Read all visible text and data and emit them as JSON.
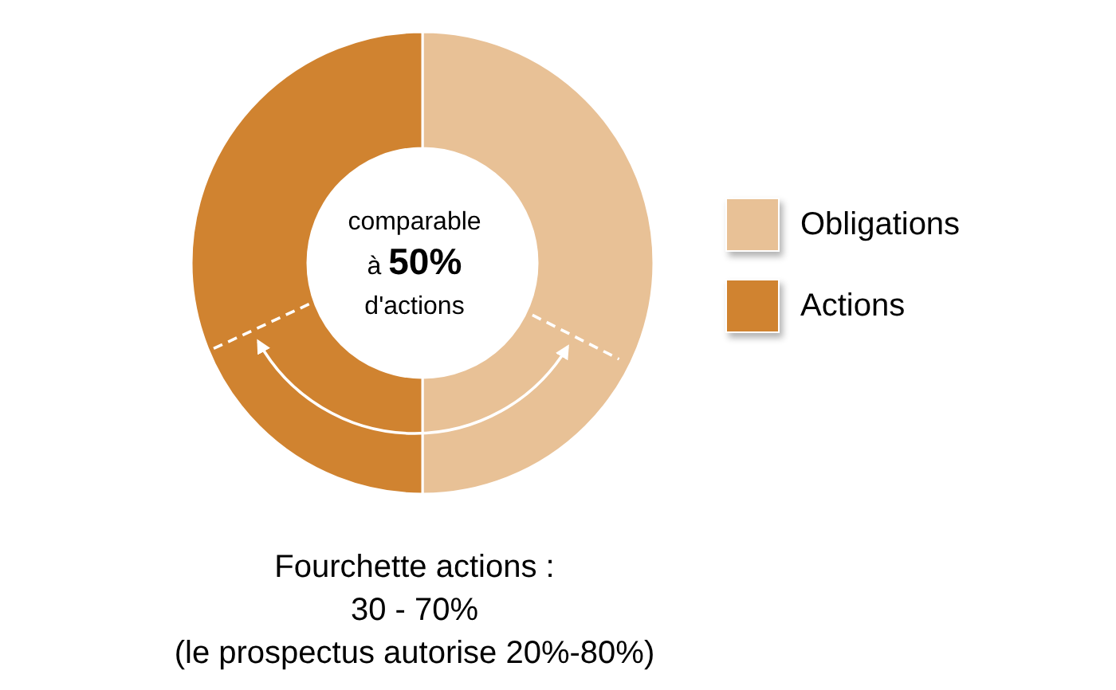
{
  "chart_data": {
    "type": "donut",
    "categories": [
      "Obligations",
      "Actions"
    ],
    "values": [
      50,
      50
    ],
    "colors": [
      "#e8c196",
      "#d08330"
    ],
    "legend": "right",
    "annotations": [
      "comparable\nà 50%\nd'actions",
      "Fourchette actions :\n30 - 70%\n(le prospectus autorise 20%-80%)"
    ]
  }
}
